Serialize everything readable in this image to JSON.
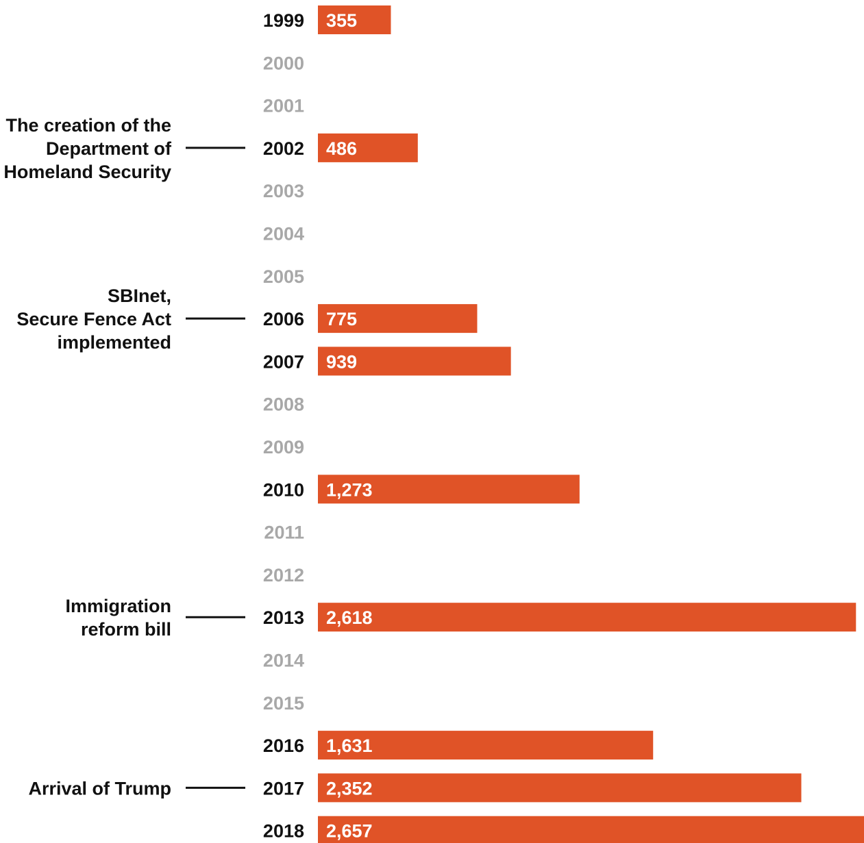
{
  "chart_data": {
    "type": "bar",
    "orientation": "horizontal",
    "categories": [
      "1999",
      "2000",
      "2001",
      "2002",
      "2003",
      "2004",
      "2005",
      "2006",
      "2007",
      "2008",
      "2009",
      "2010",
      "2011",
      "2012",
      "2013",
      "2014",
      "2015",
      "2016",
      "2017",
      "2018"
    ],
    "values": [
      355,
      null,
      null,
      486,
      null,
      null,
      null,
      775,
      939,
      null,
      null,
      1273,
      null,
      null,
      2618,
      null,
      null,
      1631,
      2352,
      2657
    ],
    "value_labels": [
      "355",
      "",
      "",
      "486",
      "",
      "",
      "",
      "775",
      "939",
      "",
      "",
      "1,273",
      "",
      "",
      "2,618",
      "",
      "",
      "1,631",
      "2,352",
      "2,657"
    ],
    "xlim": [
      0,
      2657
    ],
    "grid": false,
    "colors": {
      "bar": "#E05327",
      "year_with_data": "#111111",
      "year_without_data": "#a8a8a8",
      "annotation": "#111111",
      "value_text": "#ffffff"
    },
    "annotations": [
      {
        "category": "2002",
        "lines": [
          "The creation of the",
          "Department of",
          "Homeland Security"
        ]
      },
      {
        "category": "2006",
        "lines": [
          "SBInet,",
          "Secure Fence Act",
          "implemented"
        ]
      },
      {
        "category": "2013",
        "lines": [
          "Immigration",
          "reform bill"
        ]
      },
      {
        "category": "2017",
        "lines": [
          "Arrival of Trump"
        ]
      }
    ]
  }
}
